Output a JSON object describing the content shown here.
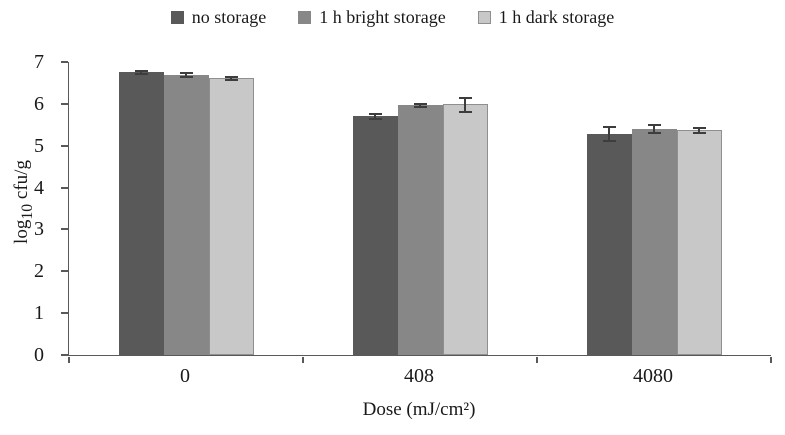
{
  "chart_data": {
    "type": "bar",
    "title": "",
    "categories": [
      "0",
      "408",
      "4080"
    ],
    "series": [
      {
        "name": "no storage",
        "color": "#595959",
        "values": [
          6.75,
          5.7,
          5.28
        ],
        "errors": [
          0.07,
          0.08,
          0.2
        ]
      },
      {
        "name": "1 h bright storage",
        "color": "#878787",
        "values": [
          6.68,
          5.97,
          5.4
        ],
        "errors": [
          0.07,
          0.06,
          0.13
        ]
      },
      {
        "name": "1 h dark storage",
        "color": "#c8c8c8",
        "border": "#8f8f8f",
        "values": [
          6.63,
          6.0,
          5.38
        ],
        "errors": [
          0.06,
          0.2,
          0.08
        ]
      }
    ],
    "xlabel": "Dose (mJ/cm²)",
    "ylabel": "log10 cfu/g",
    "ylabel_parts": {
      "prefix": "log",
      "sub": "10",
      "suffix": " cfu/g"
    },
    "ylim": [
      0,
      7
    ],
    "ytick_step": 1,
    "grid": false,
    "legend_position": "top",
    "error_bar_color": "#3d3d3d",
    "axis_color": "#595959"
  }
}
